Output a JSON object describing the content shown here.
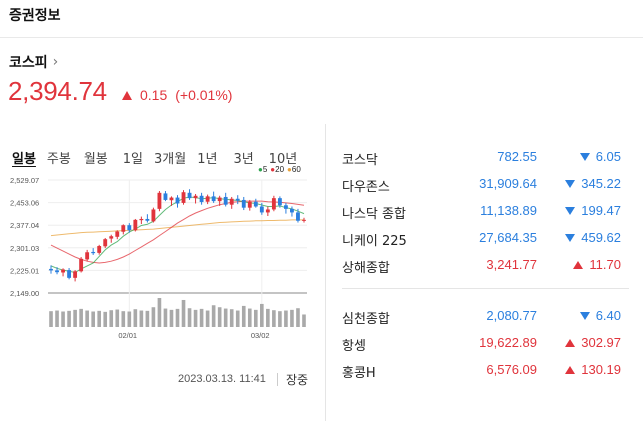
{
  "header": {
    "title": "증권정보"
  },
  "index": {
    "name": "코스피",
    "chevron_icon": "chevron-right-icon",
    "price": "2,394.74",
    "change": "0.15",
    "change_pct": "(+0.01%)",
    "direction": "up"
  },
  "tabs": [
    {
      "label": "일봉",
      "active": true
    },
    {
      "label": "주봉",
      "active": false
    },
    {
      "label": "월봉",
      "active": false
    },
    {
      "label": "1일",
      "active": false
    },
    {
      "label": "3개월",
      "active": false
    },
    {
      "label": "1년",
      "active": false
    },
    {
      "label": "3년",
      "active": false
    },
    {
      "label": "10년",
      "active": false
    }
  ],
  "legend": [
    {
      "label": "5",
      "color": "#2da44e"
    },
    {
      "label": "20",
      "color": "#e0343c"
    },
    {
      "label": "60",
      "color": "#e8a33c"
    }
  ],
  "chart_data": {
    "type": "candlestick",
    "ylim": [
      2149.0,
      2529.07
    ],
    "y_ticks": [
      "2,529.07",
      "2,453.06",
      "2,377.04",
      "2,301.03",
      "2,225.01",
      "2,149.00"
    ],
    "x_ticks": [
      "02/01",
      "03/02"
    ],
    "up_color": "#e0343c",
    "down_color": "#2b7fde",
    "ma5_color": "#2da44e",
    "ma20_color": "#e0343c",
    "ma60_color": "#e8a33c",
    "candles": [
      {
        "o": 2230,
        "h": 2242,
        "l": 2214,
        "c": 2225
      },
      {
        "o": 2225,
        "h": 2236,
        "l": 2212,
        "c": 2219
      },
      {
        "o": 2218,
        "h": 2232,
        "l": 2205,
        "c": 2228
      },
      {
        "o": 2226,
        "h": 2233,
        "l": 2195,
        "c": 2200
      },
      {
        "o": 2200,
        "h": 2226,
        "l": 2188,
        "c": 2222
      },
      {
        "o": 2222,
        "h": 2270,
        "l": 2218,
        "c": 2264
      },
      {
        "o": 2262,
        "h": 2294,
        "l": 2255,
        "c": 2286
      },
      {
        "o": 2287,
        "h": 2300,
        "l": 2277,
        "c": 2283
      },
      {
        "o": 2284,
        "h": 2311,
        "l": 2278,
        "c": 2307
      },
      {
        "o": 2306,
        "h": 2334,
        "l": 2300,
        "c": 2330
      },
      {
        "o": 2332,
        "h": 2345,
        "l": 2318,
        "c": 2340
      },
      {
        "o": 2338,
        "h": 2360,
        "l": 2330,
        "c": 2356
      },
      {
        "o": 2355,
        "h": 2380,
        "l": 2346,
        "c": 2377
      },
      {
        "o": 2377,
        "h": 2384,
        "l": 2352,
        "c": 2360
      },
      {
        "o": 2360,
        "h": 2398,
        "l": 2356,
        "c": 2395
      },
      {
        "o": 2394,
        "h": 2406,
        "l": 2381,
        "c": 2398
      },
      {
        "o": 2398,
        "h": 2414,
        "l": 2386,
        "c": 2392
      },
      {
        "o": 2390,
        "h": 2436,
        "l": 2386,
        "c": 2430
      },
      {
        "o": 2432,
        "h": 2492,
        "l": 2424,
        "c": 2486
      },
      {
        "o": 2484,
        "h": 2492,
        "l": 2458,
        "c": 2462
      },
      {
        "o": 2461,
        "h": 2474,
        "l": 2442,
        "c": 2470
      },
      {
        "o": 2470,
        "h": 2478,
        "l": 2436,
        "c": 2450
      },
      {
        "o": 2452,
        "h": 2495,
        "l": 2446,
        "c": 2488
      },
      {
        "o": 2486,
        "h": 2498,
        "l": 2462,
        "c": 2468
      },
      {
        "o": 2468,
        "h": 2482,
        "l": 2450,
        "c": 2476
      },
      {
        "o": 2476,
        "h": 2486,
        "l": 2446,
        "c": 2455
      },
      {
        "o": 2456,
        "h": 2480,
        "l": 2448,
        "c": 2474
      },
      {
        "o": 2474,
        "h": 2490,
        "l": 2452,
        "c": 2458
      },
      {
        "o": 2458,
        "h": 2476,
        "l": 2442,
        "c": 2470
      },
      {
        "o": 2472,
        "h": 2486,
        "l": 2440,
        "c": 2446
      },
      {
        "o": 2446,
        "h": 2472,
        "l": 2432,
        "c": 2466
      },
      {
        "o": 2466,
        "h": 2478,
        "l": 2448,
        "c": 2460
      },
      {
        "o": 2462,
        "h": 2472,
        "l": 2428,
        "c": 2436
      },
      {
        "o": 2436,
        "h": 2462,
        "l": 2426,
        "c": 2456
      },
      {
        "o": 2456,
        "h": 2466,
        "l": 2436,
        "c": 2440
      },
      {
        "o": 2440,
        "h": 2452,
        "l": 2412,
        "c": 2420
      },
      {
        "o": 2420,
        "h": 2440,
        "l": 2408,
        "c": 2430
      },
      {
        "o": 2430,
        "h": 2476,
        "l": 2424,
        "c": 2468
      },
      {
        "o": 2468,
        "h": 2474,
        "l": 2436,
        "c": 2444
      },
      {
        "o": 2444,
        "h": 2452,
        "l": 2416,
        "c": 2432
      },
      {
        "o": 2432,
        "h": 2440,
        "l": 2406,
        "c": 2420
      },
      {
        "o": 2420,
        "h": 2432,
        "l": 2386,
        "c": 2392
      },
      {
        "o": 2392,
        "h": 2402,
        "l": 2386,
        "c": 2395
      }
    ],
    "volume": [
      48,
      50,
      47,
      49,
      52,
      55,
      50,
      47,
      49,
      46,
      51,
      53,
      48,
      47,
      54,
      50,
      49,
      60,
      88,
      56,
      52,
      55,
      82,
      57,
      52,
      55,
      50,
      66,
      60,
      56,
      54,
      50,
      64,
      56,
      52,
      70,
      55,
      51,
      48,
      50,
      52,
      57,
      38
    ],
    "ma5": [
      2240,
      2232,
      2226,
      2222,
      2218,
      2230,
      2240,
      2250,
      2272,
      2294,
      2310,
      2322,
      2340,
      2354,
      2364,
      2376,
      2380,
      2390,
      2410,
      2430,
      2445,
      2456,
      2468,
      2472,
      2470,
      2466,
      2468,
      2470,
      2466,
      2464,
      2462,
      2460,
      2456,
      2452,
      2450,
      2445,
      2440,
      2440,
      2442,
      2436,
      2432,
      2424,
      2416
    ],
    "ma20": [
      2310,
      2300,
      2290,
      2280,
      2270,
      2262,
      2256,
      2252,
      2250,
      2252,
      2256,
      2262,
      2270,
      2280,
      2292,
      2304,
      2316,
      2328,
      2342,
      2356,
      2370,
      2384,
      2396,
      2408,
      2418,
      2426,
      2434,
      2440,
      2446,
      2450,
      2454,
      2456,
      2458,
      2458,
      2458,
      2458,
      2456,
      2455,
      2454,
      2452,
      2450,
      2447,
      2444
    ],
    "ma60": [
      2342,
      2344,
      2346,
      2348,
      2350,
      2352,
      2353,
      2354,
      2355,
      2356,
      2357,
      2358,
      2359,
      2360,
      2361,
      2362,
      2363,
      2364,
      2366,
      2368,
      2370,
      2372,
      2374,
      2376,
      2378,
      2380,
      2382,
      2384,
      2386,
      2387,
      2388,
      2389,
      2390,
      2391,
      2392,
      2392,
      2393,
      2393,
      2394,
      2394,
      2395,
      2395,
      2395
    ]
  },
  "timestamp": "2023.03.13. 11:41",
  "market_status": "장중",
  "markets_group1": [
    {
      "name": "코스닥",
      "value": "782.55",
      "change": "6.05",
      "dir": "down"
    },
    {
      "name": "다우존스",
      "value": "31,909.64",
      "change": "345.22",
      "dir": "down"
    },
    {
      "name": "나스닥 종합",
      "value": "11,138.89",
      "change": "199.47",
      "dir": "down"
    },
    {
      "name": "니케이 225",
      "value": "27,684.35",
      "change": "459.62",
      "dir": "down"
    },
    {
      "name": "상해종합",
      "value": "3,241.77",
      "change": "11.70",
      "dir": "up"
    }
  ],
  "markets_group2": [
    {
      "name": "심천종합",
      "value": "2,080.77",
      "change": "6.40",
      "dir": "down"
    },
    {
      "name": "항셍",
      "value": "19,622.89",
      "change": "302.97",
      "dir": "up"
    },
    {
      "name": "홍콩H",
      "value": "6,576.09",
      "change": "130.19",
      "dir": "up"
    }
  ]
}
